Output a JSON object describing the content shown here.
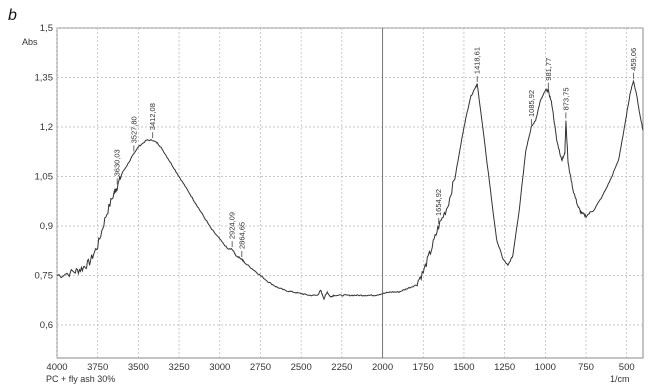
{
  "chart_data": {
    "type": "line",
    "panel_label": "b",
    "ylabel": "Abs",
    "xunit": "1/cm",
    "sample_label": "PC + fly ash 30%",
    "xlim": [
      4000,
      400
    ],
    "ylim": [
      0.5,
      1.5
    ],
    "x_reversed": true,
    "grid": true,
    "x_ticks": [
      4000,
      3750,
      3500,
      3250,
      3000,
      2750,
      2500,
      2250,
      2000,
      1750,
      1500,
      1250,
      1000,
      750,
      500
    ],
    "x_tick_labels": [
      "4000",
      "3750",
      "3500",
      "3250",
      "3000",
      "2750",
      "2500",
      "2250",
      "2000",
      "1750",
      "1500",
      "1250",
      "1000",
      "750",
      "500"
    ],
    "y_ticks": [
      0.6,
      0.75,
      0.9,
      1.05,
      1.2,
      1.35,
      1.5
    ],
    "y_tick_labels": [
      "0,6",
      "0,75",
      "0,9",
      "1,05",
      "1,2",
      "1,35",
      "1,5"
    ],
    "series": [
      {
        "x": [
          4000,
          3900,
          3850,
          3800,
          3750,
          3700,
          3650,
          3630,
          3600,
          3550,
          3527.8,
          3500,
          3450,
          3412.08,
          3380,
          3350,
          3300,
          3250,
          3200,
          3150,
          3100,
          3050,
          3000,
          2950,
          2924.09,
          2900,
          2864.65,
          2850,
          2800,
          2750,
          2700,
          2650,
          2600,
          2550,
          2500,
          2450,
          2400,
          2380,
          2360,
          2340,
          2320,
          2300,
          2250,
          2200,
          2150,
          2100,
          2050,
          2000,
          1950,
          1900,
          1850,
          1800,
          1750,
          1700,
          1654.92,
          1600,
          1550,
          1500,
          1460,
          1430,
          1418.61,
          1400,
          1350,
          1300,
          1260,
          1230,
          1200,
          1160,
          1120,
          1085.92,
          1060,
          1030,
          1000,
          981.77,
          960,
          930,
          900,
          880,
          873.75,
          860,
          830,
          800,
          780,
          750,
          700,
          650,
          600,
          550,
          510,
          480,
          459.06,
          440,
          420,
          400
        ],
        "y": [
          0.75,
          0.76,
          0.77,
          0.79,
          0.84,
          0.93,
          1.0,
          1.02,
          1.06,
          1.1,
          1.12,
          1.14,
          1.16,
          1.16,
          1.15,
          1.13,
          1.09,
          1.05,
          1.01,
          0.97,
          0.93,
          0.89,
          0.86,
          0.83,
          0.83,
          0.81,
          0.8,
          0.79,
          0.77,
          0.75,
          0.73,
          0.715,
          0.705,
          0.7,
          0.695,
          0.69,
          0.69,
          0.705,
          0.68,
          0.7,
          0.685,
          0.69,
          0.69,
          0.69,
          0.69,
          0.69,
          0.69,
          0.695,
          0.7,
          0.7,
          0.71,
          0.72,
          0.76,
          0.83,
          0.9,
          0.96,
          1.06,
          1.2,
          1.29,
          1.32,
          1.33,
          1.26,
          1.06,
          0.86,
          0.8,
          0.78,
          0.81,
          0.95,
          1.13,
          1.2,
          1.22,
          1.28,
          1.31,
          1.31,
          1.27,
          1.16,
          1.1,
          1.12,
          1.22,
          1.09,
          1.01,
          0.96,
          0.94,
          0.93,
          0.95,
          0.99,
          1.04,
          1.1,
          1.21,
          1.3,
          1.34,
          1.3,
          1.24,
          1.19
        ]
      }
    ],
    "peak_labels": [
      {
        "x": 3630.03,
        "y": 1.02,
        "label": "3630,03"
      },
      {
        "x": 3527.8,
        "y": 1.12,
        "label": "3527,80"
      },
      {
        "x": 3412.08,
        "y": 1.16,
        "label": "3412,08"
      },
      {
        "x": 2924.09,
        "y": 0.83,
        "label": "2924,09"
      },
      {
        "x": 2864.65,
        "y": 0.8,
        "label": "2864,65"
      },
      {
        "x": 1654.92,
        "y": 0.9,
        "label": "1654,92"
      },
      {
        "x": 1418.61,
        "y": 1.33,
        "label": "1418,61"
      },
      {
        "x": 1085.92,
        "y": 1.2,
        "label": "1085,92"
      },
      {
        "x": 981.77,
        "y": 1.31,
        "label": "981,77"
      },
      {
        "x": 873.75,
        "y": 1.22,
        "label": "873,75"
      },
      {
        "x": 459.06,
        "y": 1.34,
        "label": "459,06"
      }
    ]
  }
}
